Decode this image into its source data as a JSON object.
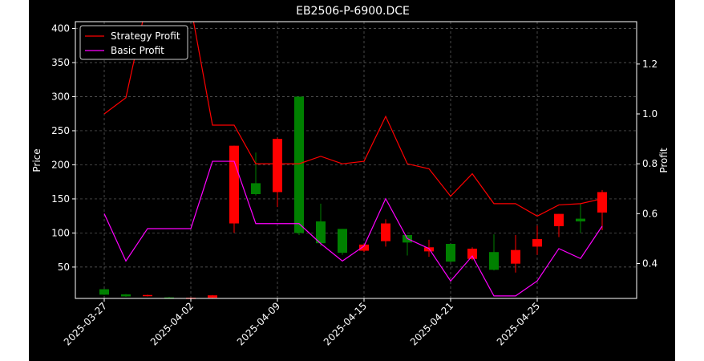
{
  "chart_data": {
    "type": "candlestick+line",
    "title": "EB2506-P-6900.DCE",
    "xlabel": "",
    "ylabel_left": "Price",
    "ylabel_right": "Profit",
    "ylim_left": [
      4,
      410
    ],
    "ylim_right": [
      0.26,
      1.37
    ],
    "yticks_left": [
      50,
      100,
      150,
      200,
      250,
      300,
      350,
      400
    ],
    "yticks_right": [
      0.4,
      0.6,
      0.8,
      1.0,
      1.2
    ],
    "grid": true,
    "legend_position": "top-left",
    "x_tick_labels": [
      "2025-03-27",
      "2025-04-02",
      "2025-04-09",
      "2025-04-15",
      "2025-04-21",
      "2025-04-25"
    ],
    "x_tick_indices": [
      0,
      4,
      8,
      12,
      16,
      20
    ],
    "up_color": "#ff0000",
    "down_color": "#008000",
    "candles": [
      {
        "open": 17.5,
        "high": 18,
        "low": 9,
        "close": 9.5
      },
      {
        "open": 10,
        "high": 10.5,
        "low": 6.5,
        "close": 7
      },
      {
        "open": 7.5,
        "high": 9.5,
        "low": 7,
        "close": 9
      },
      {
        "open": 5.5,
        "high": 6,
        "low": 4.5,
        "close": 4.8
      },
      {
        "open": 4.5,
        "high": 5.5,
        "low": 4,
        "close": 5
      },
      {
        "open": 5,
        "high": 9,
        "low": 4.8,
        "close": 8.5
      },
      {
        "open": 114,
        "high": 228,
        "low": 100,
        "close": 228
      },
      {
        "open": 173,
        "high": 218,
        "low": 155,
        "close": 157
      },
      {
        "open": 160,
        "high": 240,
        "low": 138,
        "close": 238
      },
      {
        "open": 300,
        "high": 300,
        "low": 97,
        "close": 100
      },
      {
        "open": 117,
        "high": 143,
        "low": 81,
        "close": 85
      },
      {
        "open": 106,
        "high": 106,
        "low": 68,
        "close": 71
      },
      {
        "open": 74,
        "high": 84,
        "low": 72,
        "close": 83
      },
      {
        "open": 88,
        "high": 120,
        "low": 80,
        "close": 114
      },
      {
        "open": 97,
        "high": 97,
        "low": 67,
        "close": 86
      },
      {
        "open": 73,
        "high": 90,
        "low": 65,
        "close": 79
      },
      {
        "open": 84,
        "high": 84,
        "low": 57,
        "close": 58
      },
      {
        "open": 62,
        "high": 79,
        "low": 60,
        "close": 77
      },
      {
        "open": 72,
        "high": 98,
        "low": 45,
        "close": 46
      },
      {
        "open": 55,
        "high": 97,
        "low": 42,
        "close": 75
      },
      {
        "open": 80,
        "high": 111,
        "low": 68,
        "close": 91
      },
      {
        "open": 110,
        "high": 128,
        "low": 94,
        "close": 128
      },
      {
        "open": 121,
        "high": 143,
        "low": 100,
        "close": 117
      },
      {
        "open": 130,
        "high": 163,
        "low": 104,
        "close": 160
      }
    ],
    "series": [
      {
        "name": "Strategy Profit",
        "color": "#ff0000",
        "values": [
          1.0,
          1.065,
          1.46,
          1.41,
          1.43,
          0.955,
          0.955,
          0.8,
          0.8,
          0.8,
          0.83,
          0.8,
          0.81,
          0.99,
          0.8,
          0.78,
          0.67,
          0.76,
          0.64,
          0.64,
          0.59,
          0.635,
          0.64,
          0.66
        ]
      },
      {
        "name": "Basic Profit",
        "color": "#ff00ff",
        "values": [
          0.6,
          0.41,
          0.54,
          0.54,
          0.54,
          0.81,
          0.81,
          0.56,
          0.56,
          0.56,
          0.48,
          0.41,
          0.47,
          0.66,
          0.5,
          0.46,
          0.33,
          0.43,
          0.27,
          0.27,
          0.33,
          0.46,
          0.42,
          0.55
        ]
      }
    ]
  }
}
